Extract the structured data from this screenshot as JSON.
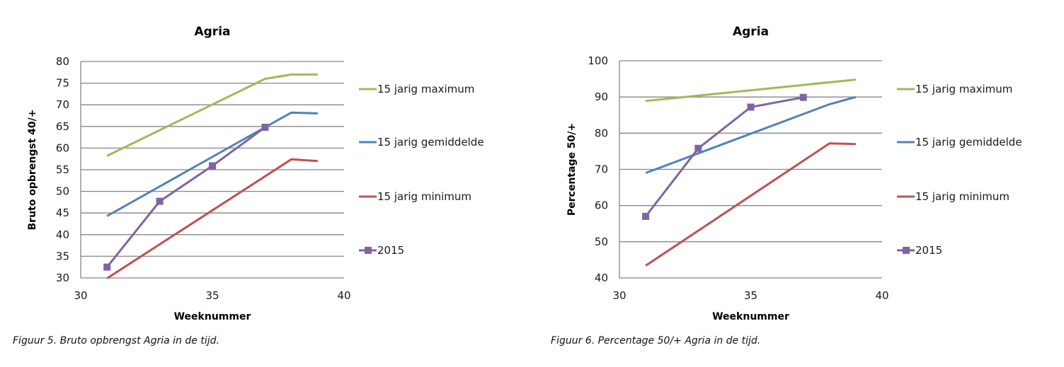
{
  "captions": [
    "Figuur 5. Bruto opbrengst Agria in de tijd.",
    "Figuur 6. Percentage 50/+ Agria in de tijd."
  ],
  "chart_data": [
    {
      "type": "line",
      "title": "Agria",
      "xlabel": "Weeknummer",
      "ylabel": "Bruto opbrengst 40/+",
      "xlim": [
        30,
        40
      ],
      "ylim": [
        30,
        80
      ],
      "xticks": [
        30,
        35,
        40
      ],
      "yticks": [
        30,
        35,
        40,
        45,
        50,
        55,
        60,
        65,
        70,
        75,
        80
      ],
      "grid": "horizontal",
      "legend": "right",
      "series": [
        {
          "name": "15 jarig maximum",
          "color": "#9BBB59",
          "marker": "none",
          "x": [
            31,
            37,
            38,
            39
          ],
          "y": [
            58.2,
            76.0,
            77.0,
            77.0
          ]
        },
        {
          "name": "15 jarig gemiddelde",
          "color": "#4F81BD",
          "marker": "none",
          "x": [
            31,
            37,
            38,
            39
          ],
          "y": [
            44.3,
            64.8,
            68.2,
            68.0
          ]
        },
        {
          "name": "15 jarig minimum",
          "color": "#C0504D",
          "marker": "none",
          "x": [
            31,
            38,
            39
          ],
          "y": [
            29.9,
            57.4,
            57.0
          ]
        },
        {
          "name": "2015",
          "color": "#8064A2",
          "marker": "square",
          "x": [
            31,
            33,
            35,
            37
          ],
          "y": [
            32.5,
            47.7,
            55.9,
            64.8
          ]
        }
      ]
    },
    {
      "type": "line",
      "title": "Agria",
      "xlabel": "Weeknummer",
      "ylabel": "Percentage 50/+",
      "xlim": [
        30,
        40
      ],
      "ylim": [
        40,
        100
      ],
      "xticks": [
        30,
        35,
        40
      ],
      "yticks": [
        40,
        50,
        60,
        70,
        80,
        90,
        100
      ],
      "grid": "horizontal",
      "legend": "right",
      "series": [
        {
          "name": "15 jarig maximum",
          "color": "#9BBB59",
          "marker": "none",
          "x": [
            31,
            39
          ],
          "y": [
            88.9,
            94.8
          ]
        },
        {
          "name": "15 jarig gemiddelde",
          "color": "#4F81BD",
          "marker": "none",
          "x": [
            31,
            38,
            39
          ],
          "y": [
            69.0,
            88.0,
            90.0
          ]
        },
        {
          "name": "15 jarig minimum",
          "color": "#C0504D",
          "marker": "none",
          "x": [
            31,
            38,
            39
          ],
          "y": [
            43.4,
            77.2,
            77.0
          ]
        },
        {
          "name": "2015",
          "color": "#8064A2",
          "marker": "square",
          "x": [
            31,
            33,
            35,
            37
          ],
          "y": [
            57.0,
            75.8,
            87.2,
            89.9
          ]
        }
      ]
    }
  ]
}
